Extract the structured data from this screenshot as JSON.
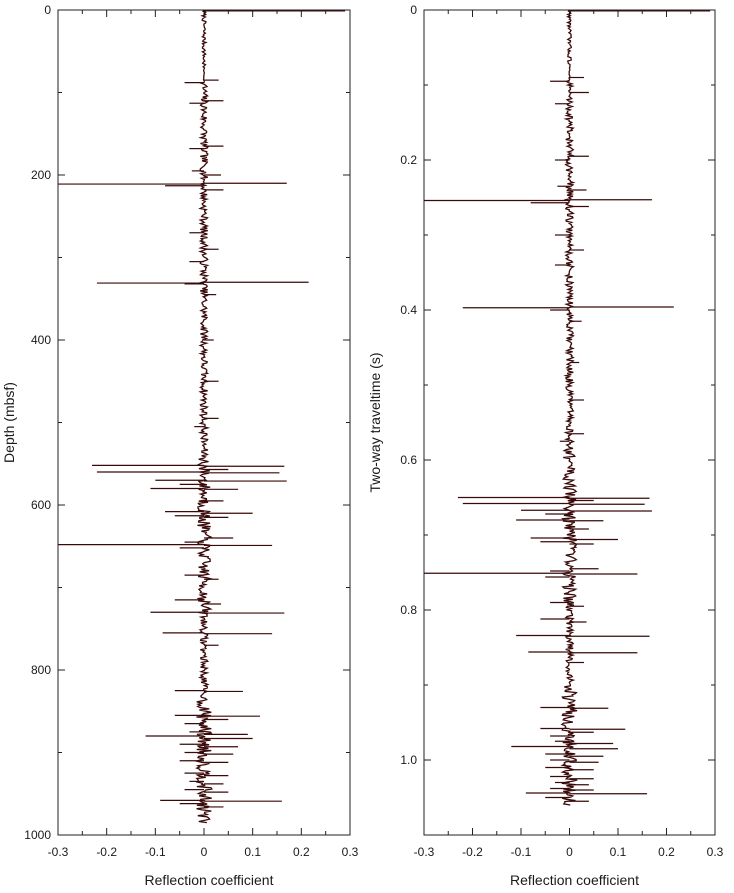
{
  "chart_data": [
    {
      "type": "line",
      "orientation": "vertical-log",
      "xlabel": "Reflection coefficient",
      "ylabel": "Depth (mbsf)",
      "xlim": [
        -0.3,
        0.3
      ],
      "ylim": [
        0,
        1000
      ],
      "y_inverted": true,
      "x_ticks": [
        "-0.3",
        "-0.2",
        "-0.1",
        "0",
        "0.1",
        "0.2",
        "0.3"
      ],
      "y_ticks": [
        "0",
        "200",
        "400",
        "600",
        "800",
        "1000"
      ],
      "grid": false,
      "color": "#3a0a0a",
      "data_extent": [
        0,
        985
      ],
      "spikes": [
        {
          "y": 85,
          "x": 0.03
        },
        {
          "y": 88,
          "x": -0.04
        },
        {
          "y": 110,
          "x": 0.04
        },
        {
          "y": 113,
          "x": -0.03
        },
        {
          "y": 165,
          "x": 0.04
        },
        {
          "y": 168,
          "x": -0.03
        },
        {
          "y": 195,
          "x": -0.025
        },
        {
          "y": 200,
          "x": 0.035
        },
        {
          "y": 210,
          "x": 0.17
        },
        {
          "y": 211,
          "x": -0.3
        },
        {
          "y": 213,
          "x": -0.08
        },
        {
          "y": 218,
          "x": 0.04
        },
        {
          "y": 270,
          "x": -0.03
        },
        {
          "y": 290,
          "x": 0.03
        },
        {
          "y": 305,
          "x": -0.03
        },
        {
          "y": 330,
          "x": 0.215
        },
        {
          "y": 331,
          "x": -0.22
        },
        {
          "y": 332,
          "x": -0.04
        },
        {
          "y": 345,
          "x": 0.025
        },
        {
          "y": 400,
          "x": 0.02
        },
        {
          "y": 450,
          "x": 0.03
        },
        {
          "y": 495,
          "x": 0.03
        },
        {
          "y": 505,
          "x": -0.02
        },
        {
          "y": 552,
          "x": -0.23
        },
        {
          "y": 553,
          "x": 0.165
        },
        {
          "y": 557,
          "x": 0.05
        },
        {
          "y": 560,
          "x": -0.22
        },
        {
          "y": 561,
          "x": 0.155
        },
        {
          "y": 570,
          "x": -0.1
        },
        {
          "y": 571,
          "x": 0.17
        },
        {
          "y": 575,
          "x": -0.05
        },
        {
          "y": 580,
          "x": -0.11
        },
        {
          "y": 581,
          "x": 0.07
        },
        {
          "y": 595,
          "x": 0.04
        },
        {
          "y": 608,
          "x": -0.08
        },
        {
          "y": 610,
          "x": 0.1
        },
        {
          "y": 613,
          "x": -0.06
        },
        {
          "y": 615,
          "x": 0.05
        },
        {
          "y": 640,
          "x": 0.06
        },
        {
          "y": 645,
          "x": -0.04
        },
        {
          "y": 648,
          "x": -0.3
        },
        {
          "y": 649,
          "x": 0.14
        },
        {
          "y": 652,
          "x": -0.05
        },
        {
          "y": 685,
          "x": -0.04
        },
        {
          "y": 690,
          "x": 0.03
        },
        {
          "y": 715,
          "x": -0.06
        },
        {
          "y": 720,
          "x": 0.035
        },
        {
          "y": 730,
          "x": -0.11
        },
        {
          "y": 731,
          "x": 0.165
        },
        {
          "y": 755,
          "x": -0.085
        },
        {
          "y": 756,
          "x": 0.14
        },
        {
          "y": 770,
          "x": 0.03
        },
        {
          "y": 825,
          "x": -0.06
        },
        {
          "y": 826,
          "x": 0.08
        },
        {
          "y": 855,
          "x": -0.06
        },
        {
          "y": 856,
          "x": 0.115
        },
        {
          "y": 860,
          "x": 0.05
        },
        {
          "y": 865,
          "x": -0.04
        },
        {
          "y": 875,
          "x": -0.03
        },
        {
          "y": 878,
          "x": 0.09
        },
        {
          "y": 880,
          "x": -0.12
        },
        {
          "y": 883,
          "x": 0.1
        },
        {
          "y": 890,
          "x": -0.05
        },
        {
          "y": 893,
          "x": 0.07
        },
        {
          "y": 900,
          "x": -0.04
        },
        {
          "y": 902,
          "x": 0.06
        },
        {
          "y": 910,
          "x": -0.05
        },
        {
          "y": 912,
          "x": 0.05
        },
        {
          "y": 925,
          "x": -0.04
        },
        {
          "y": 928,
          "x": 0.05
        },
        {
          "y": 935,
          "x": -0.03
        },
        {
          "y": 938,
          "x": 0.04
        },
        {
          "y": 945,
          "x": -0.04
        },
        {
          "y": 948,
          "x": 0.05
        },
        {
          "y": 958,
          "x": -0.09
        },
        {
          "y": 959,
          "x": 0.16
        },
        {
          "y": 962,
          "x": -0.05
        },
        {
          "y": 966,
          "x": 0.04
        }
      ]
    },
    {
      "type": "line",
      "orientation": "vertical-log",
      "xlabel": "Reflection coefficient",
      "ylabel": "Two-way traveltime (s)",
      "xlim": [
        -0.3,
        0.3
      ],
      "ylim": [
        0,
        1.1
      ],
      "y_inverted": true,
      "x_ticks": [
        "-0.3",
        "-0.2",
        "-0.1",
        "0",
        "0.1",
        "0.2",
        "0.3"
      ],
      "y_ticks": [
        "0",
        "0.2",
        "0.4",
        "0.6",
        "0.8",
        "1.0"
      ],
      "grid": false,
      "color": "#3a0a0a",
      "data_extent": [
        0,
        1.06
      ],
      "spikes": [
        {
          "y": 0.09,
          "x": 0.03
        },
        {
          "y": 0.095,
          "x": -0.04
        },
        {
          "y": 0.11,
          "x": 0.04
        },
        {
          "y": 0.125,
          "x": -0.03
        },
        {
          "y": 0.195,
          "x": 0.04
        },
        {
          "y": 0.2,
          "x": -0.03
        },
        {
          "y": 0.235,
          "x": -0.025
        },
        {
          "y": 0.24,
          "x": 0.035
        },
        {
          "y": 0.253,
          "x": 0.17
        },
        {
          "y": 0.254,
          "x": -0.3
        },
        {
          "y": 0.257,
          "x": -0.08
        },
        {
          "y": 0.262,
          "x": 0.04
        },
        {
          "y": 0.3,
          "x": -0.03
        },
        {
          "y": 0.32,
          "x": 0.03
        },
        {
          "y": 0.34,
          "x": -0.03
        },
        {
          "y": 0.396,
          "x": 0.215
        },
        {
          "y": 0.397,
          "x": -0.22
        },
        {
          "y": 0.4,
          "x": -0.04
        },
        {
          "y": 0.415,
          "x": 0.025
        },
        {
          "y": 0.47,
          "x": 0.02
        },
        {
          "y": 0.52,
          "x": 0.03
        },
        {
          "y": 0.565,
          "x": 0.03
        },
        {
          "y": 0.575,
          "x": -0.02
        },
        {
          "y": 0.65,
          "x": -0.23
        },
        {
          "y": 0.651,
          "x": 0.165
        },
        {
          "y": 0.654,
          "x": 0.05
        },
        {
          "y": 0.658,
          "x": -0.22
        },
        {
          "y": 0.659,
          "x": 0.155
        },
        {
          "y": 0.667,
          "x": -0.1
        },
        {
          "y": 0.668,
          "x": 0.17
        },
        {
          "y": 0.672,
          "x": -0.05
        },
        {
          "y": 0.68,
          "x": -0.11
        },
        {
          "y": 0.681,
          "x": 0.07
        },
        {
          "y": 0.692,
          "x": 0.04
        },
        {
          "y": 0.704,
          "x": -0.08
        },
        {
          "y": 0.706,
          "x": 0.1
        },
        {
          "y": 0.709,
          "x": -0.06
        },
        {
          "y": 0.712,
          "x": 0.05
        },
        {
          "y": 0.745,
          "x": 0.06
        },
        {
          "y": 0.748,
          "x": -0.04
        },
        {
          "y": 0.751,
          "x": -0.3
        },
        {
          "y": 0.752,
          "x": 0.14
        },
        {
          "y": 0.756,
          "x": -0.05
        },
        {
          "y": 0.79,
          "x": -0.04
        },
        {
          "y": 0.795,
          "x": 0.03
        },
        {
          "y": 0.812,
          "x": -0.06
        },
        {
          "y": 0.816,
          "x": 0.035
        },
        {
          "y": 0.834,
          "x": -0.11
        },
        {
          "y": 0.835,
          "x": 0.165
        },
        {
          "y": 0.856,
          "x": -0.085
        },
        {
          "y": 0.857,
          "x": 0.14
        },
        {
          "y": 0.87,
          "x": 0.03
        },
        {
          "y": 0.93,
          "x": -0.06
        },
        {
          "y": 0.931,
          "x": 0.08
        },
        {
          "y": 0.958,
          "x": -0.06
        },
        {
          "y": 0.959,
          "x": 0.115
        },
        {
          "y": 0.963,
          "x": 0.05
        },
        {
          "y": 0.968,
          "x": -0.04
        },
        {
          "y": 0.975,
          "x": -0.03
        },
        {
          "y": 0.978,
          "x": 0.09
        },
        {
          "y": 0.982,
          "x": -0.12
        },
        {
          "y": 0.985,
          "x": 0.1
        },
        {
          "y": 0.992,
          "x": -0.05
        },
        {
          "y": 0.995,
          "x": 0.07
        },
        {
          "y": 1.0,
          "x": -0.04
        },
        {
          "y": 1.003,
          "x": 0.06
        },
        {
          "y": 1.01,
          "x": -0.05
        },
        {
          "y": 1.013,
          "x": 0.05
        },
        {
          "y": 1.022,
          "x": -0.04
        },
        {
          "y": 1.025,
          "x": 0.05
        },
        {
          "y": 1.03,
          "x": -0.03
        },
        {
          "y": 1.033,
          "x": 0.04
        },
        {
          "y": 1.038,
          "x": -0.04
        },
        {
          "y": 1.04,
          "x": 0.05
        },
        {
          "y": 1.044,
          "x": -0.09
        },
        {
          "y": 1.045,
          "x": 0.16
        },
        {
          "y": 1.05,
          "x": -0.05
        },
        {
          "y": 1.055,
          "x": 0.04
        }
      ]
    }
  ]
}
